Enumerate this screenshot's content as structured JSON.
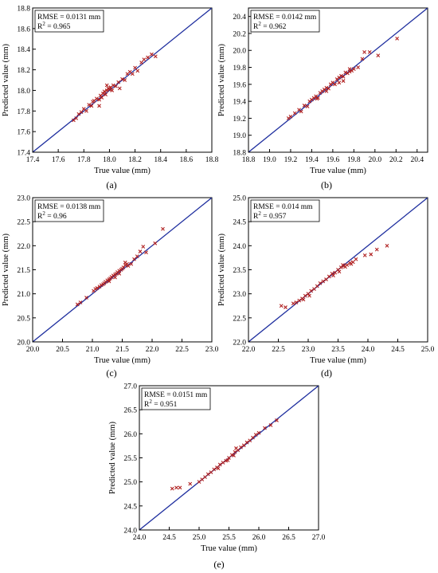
{
  "chart_data": [
    {
      "type": "scatter",
      "caption": "(a)",
      "xlabel": "True value (mm)",
      "ylabel": "Predicted value (mm)",
      "xlim": [
        17.4,
        18.8
      ],
      "ylim": [
        17.4,
        18.8
      ],
      "xticks": [
        "17.4",
        "17.6",
        "17.8",
        "18.0",
        "18.2",
        "18.4",
        "18.6",
        "18.8"
      ],
      "yticks": [
        "17.4",
        "17.6",
        "17.8",
        "18.0",
        "18.2",
        "18.4",
        "18.6",
        "18.8"
      ],
      "rmse_text": "RMSE = 0.0131 mm",
      "r2_prefix": "R",
      "r2_suffix": " = 0.965",
      "reference_line": "y = x",
      "marker_color": "#b02020",
      "line_color": "#1f2f9f",
      "points": [
        [
          17.72,
          17.71
        ],
        [
          17.74,
          17.73
        ],
        [
          17.76,
          17.77
        ],
        [
          17.78,
          17.79
        ],
        [
          17.8,
          17.82
        ],
        [
          17.82,
          17.8
        ],
        [
          17.84,
          17.86
        ],
        [
          17.86,
          17.85
        ],
        [
          17.87,
          17.89
        ],
        [
          17.88,
          17.9
        ],
        [
          17.9,
          17.92
        ],
        [
          17.92,
          17.91
        ],
        [
          17.93,
          17.95
        ],
        [
          17.94,
          17.93
        ],
        [
          17.95,
          17.97
        ],
        [
          17.96,
          17.99
        ],
        [
          17.97,
          17.96
        ],
        [
          17.98,
          18.0
        ],
        [
          17.99,
          18.02
        ],
        [
          18.0,
          18.01
        ],
        [
          18.01,
          18.03
        ],
        [
          18.02,
          18.0
        ],
        [
          18.03,
          18.05
        ],
        [
          18.05,
          18.04
        ],
        [
          18.07,
          18.08
        ],
        [
          18.1,
          18.11
        ],
        [
          18.12,
          18.1
        ],
        [
          18.14,
          18.16
        ],
        [
          18.16,
          18.18
        ],
        [
          18.18,
          18.16
        ],
        [
          18.2,
          18.22
        ],
        [
          18.22,
          18.19
        ],
        [
          18.25,
          18.27
        ],
        [
          18.27,
          18.3
        ],
        [
          18.3,
          18.32
        ],
        [
          18.33,
          18.35
        ],
        [
          18.36,
          18.33
        ],
        [
          17.98,
          18.05
        ],
        [
          17.92,
          17.85
        ],
        [
          18.08,
          18.02
        ]
      ]
    },
    {
      "type": "scatter",
      "caption": "(b)",
      "xlabel": "True value (mm)",
      "ylabel": "Predicted value (mm)",
      "xlim": [
        18.8,
        20.5
      ],
      "ylim": [
        18.8,
        20.5
      ],
      "xticks": [
        "18.8",
        "19.0",
        "19.2",
        "19.4",
        "19.6",
        "19.8",
        "20.0",
        "20.2",
        "20.4"
      ],
      "yticks": [
        "18.8",
        "19.0",
        "19.2",
        "19.4",
        "19.6",
        "19.8",
        "20.0",
        "20.2",
        "20.4"
      ],
      "rmse_text": "RMSE = 0.0142 mm",
      "r2_prefix": "R",
      "r2_suffix": " = 0.962",
      "reference_line": "y = x",
      "marker_color": "#b02020",
      "line_color": "#1f2f9f",
      "points": [
        [
          19.18,
          19.2
        ],
        [
          19.2,
          19.22
        ],
        [
          19.24,
          19.26
        ],
        [
          19.28,
          19.3
        ],
        [
          19.3,
          19.28
        ],
        [
          19.33,
          19.35
        ],
        [
          19.36,
          19.34
        ],
        [
          19.38,
          19.4
        ],
        [
          19.4,
          19.42
        ],
        [
          19.42,
          19.44
        ],
        [
          19.44,
          19.46
        ],
        [
          19.46,
          19.44
        ],
        [
          19.48,
          19.5
        ],
        [
          19.5,
          19.52
        ],
        [
          19.52,
          19.54
        ],
        [
          19.54,
          19.56
        ],
        [
          19.56,
          19.55
        ],
        [
          19.58,
          19.6
        ],
        [
          19.6,
          19.62
        ],
        [
          19.62,
          19.6
        ],
        [
          19.64,
          19.66
        ],
        [
          19.66,
          19.68
        ],
        [
          19.68,
          19.7
        ],
        [
          19.7,
          19.69
        ],
        [
          19.72,
          19.74
        ],
        [
          19.74,
          19.73
        ],
        [
          19.76,
          19.78
        ],
        [
          19.78,
          19.76
        ],
        [
          19.8,
          19.78
        ],
        [
          19.84,
          19.8
        ],
        [
          19.88,
          19.9
        ],
        [
          19.9,
          19.98
        ],
        [
          19.95,
          19.98
        ],
        [
          20.03,
          19.94
        ],
        [
          20.21,
          20.14
        ],
        [
          19.66,
          19.62
        ],
        [
          19.7,
          19.64
        ],
        [
          19.76,
          19.75
        ],
        [
          19.54,
          19.52
        ],
        [
          19.45,
          19.43
        ]
      ]
    },
    {
      "type": "scatter",
      "caption": "(c)",
      "xlabel": "True value (mm)",
      "ylabel": "Predicted value (mm)",
      "xlim": [
        20.0,
        23.0
      ],
      "ylim": [
        20.0,
        23.0
      ],
      "xticks": [
        "20.0",
        "20.5",
        "21.0",
        "21.5",
        "22.0",
        "22.5",
        "23.0"
      ],
      "yticks": [
        "20.0",
        "20.5",
        "21.0",
        "21.5",
        "22.0",
        "22.5",
        "23.0"
      ],
      "rmse_text": "RMSE = 0.0138 mm",
      "r2_prefix": "R",
      "r2_suffix": " = 0.96",
      "reference_line": "y = x",
      "marker_color": "#b02020",
      "line_color": "#1f2f9f",
      "points": [
        [
          20.75,
          20.78
        ],
        [
          20.8,
          20.82
        ],
        [
          20.9,
          20.92
        ],
        [
          21.02,
          21.06
        ],
        [
          21.05,
          21.1
        ],
        [
          21.08,
          21.12
        ],
        [
          21.12,
          21.15
        ],
        [
          21.15,
          21.18
        ],
        [
          21.18,
          21.2
        ],
        [
          21.2,
          21.22
        ],
        [
          21.22,
          21.25
        ],
        [
          21.25,
          21.28
        ],
        [
          21.28,
          21.3
        ],
        [
          21.3,
          21.32
        ],
        [
          21.32,
          21.35
        ],
        [
          21.35,
          21.38
        ],
        [
          21.38,
          21.4
        ],
        [
          21.4,
          21.42
        ],
        [
          21.42,
          21.45
        ],
        [
          21.45,
          21.48
        ],
        [
          21.48,
          21.5
        ],
        [
          21.5,
          21.52
        ],
        [
          21.52,
          21.55
        ],
        [
          21.55,
          21.6
        ],
        [
          21.58,
          21.62
        ],
        [
          21.6,
          21.58
        ],
        [
          21.65,
          21.62
        ],
        [
          21.7,
          21.72
        ],
        [
          21.75,
          21.78
        ],
        [
          21.8,
          21.88
        ],
        [
          21.85,
          21.98
        ],
        [
          21.9,
          21.86
        ],
        [
          22.05,
          22.05
        ],
        [
          22.18,
          22.35
        ],
        [
          21.45,
          21.42
        ],
        [
          21.38,
          21.34
        ],
        [
          21.28,
          21.26
        ],
        [
          21.55,
          21.65
        ]
      ]
    },
    {
      "type": "scatter",
      "caption": "(d)",
      "xlabel": "True value (mm)",
      "ylabel": "Predicted value (mm)",
      "xlim": [
        22.0,
        25.0
      ],
      "ylim": [
        22.0,
        25.0
      ],
      "xticks": [
        "22.0",
        "22.5",
        "23.0",
        "23.5",
        "24.0",
        "24.5",
        "25.0"
      ],
      "yticks": [
        "22.0",
        "22.5",
        "23.0",
        "23.5",
        "24.0",
        "24.5",
        "25.0"
      ],
      "rmse_text": "RMSE = 0.014 mm",
      "r2_prefix": "R",
      "r2_suffix": " = 0.957",
      "reference_line": "y = x",
      "marker_color": "#b02020",
      "line_color": "#1f2f9f",
      "points": [
        [
          22.55,
          22.75
        ],
        [
          22.62,
          22.72
        ],
        [
          22.75,
          22.8
        ],
        [
          22.8,
          22.82
        ],
        [
          22.85,
          22.86
        ],
        [
          22.9,
          22.9
        ],
        [
          22.95,
          22.96
        ],
        [
          23.0,
          23.0
        ],
        [
          23.05,
          23.06
        ],
        [
          23.1,
          23.1
        ],
        [
          23.15,
          23.16
        ],
        [
          23.2,
          23.22
        ],
        [
          23.25,
          23.26
        ],
        [
          23.3,
          23.3
        ],
        [
          23.35,
          23.36
        ],
        [
          23.4,
          23.42
        ],
        [
          23.45,
          23.44
        ],
        [
          23.5,
          23.5
        ],
        [
          23.55,
          23.55
        ],
        [
          23.6,
          23.58
        ],
        [
          23.65,
          23.6
        ],
        [
          23.7,
          23.64
        ],
        [
          23.75,
          23.66
        ],
        [
          23.8,
          23.72
        ],
        [
          23.95,
          23.8
        ],
        [
          24.05,
          23.82
        ],
        [
          24.15,
          23.92
        ],
        [
          24.32,
          24.0
        ],
        [
          23.62,
          23.56
        ],
        [
          23.52,
          23.46
        ],
        [
          23.42,
          23.38
        ],
        [
          23.02,
          22.96
        ],
        [
          22.92,
          22.88
        ],
        [
          23.72,
          23.62
        ],
        [
          23.58,
          23.6
        ]
      ]
    },
    {
      "type": "scatter",
      "caption": "(e)",
      "xlabel": "True value (mm)",
      "ylabel": "Predicted value (mm)",
      "xlim": [
        24.0,
        27.0
      ],
      "ylim": [
        24.0,
        27.0
      ],
      "xticks": [
        "24.0",
        "24.5",
        "25.0",
        "25.5",
        "26.0",
        "26.5",
        "27.0"
      ],
      "yticks": [
        "24.0",
        "24.5",
        "25.0",
        "25.5",
        "26.0",
        "26.5",
        "27.0"
      ],
      "rmse_text": "RMSE = 0.0151 mm",
      "r2_prefix": "R",
      "r2_suffix": " = 0.951",
      "reference_line": "y = x",
      "marker_color": "#b02020",
      "line_color": "#1f2f9f",
      "points": [
        [
          24.55,
          24.86
        ],
        [
          24.62,
          24.88
        ],
        [
          24.68,
          24.88
        ],
        [
          24.85,
          24.96
        ],
        [
          25.0,
          25.0
        ],
        [
          25.05,
          25.05
        ],
        [
          25.1,
          25.1
        ],
        [
          25.15,
          25.16
        ],
        [
          25.2,
          25.2
        ],
        [
          25.25,
          25.26
        ],
        [
          25.3,
          25.3
        ],
        [
          25.35,
          25.36
        ],
        [
          25.4,
          25.4
        ],
        [
          25.45,
          25.44
        ],
        [
          25.5,
          25.5
        ],
        [
          25.55,
          25.56
        ],
        [
          25.6,
          25.62
        ],
        [
          25.65,
          25.66
        ],
        [
          25.7,
          25.72
        ],
        [
          25.75,
          25.76
        ],
        [
          25.8,
          25.82
        ],
        [
          25.85,
          25.86
        ],
        [
          25.9,
          25.92
        ],
        [
          25.95,
          25.98
        ],
        [
          26.0,
          26.02
        ],
        [
          26.1,
          26.12
        ],
        [
          26.2,
          26.18
        ],
        [
          26.3,
          26.28
        ],
        [
          25.48,
          25.45
        ],
        [
          25.58,
          25.55
        ],
        [
          25.32,
          25.28
        ],
        [
          25.62,
          25.7
        ]
      ]
    }
  ]
}
